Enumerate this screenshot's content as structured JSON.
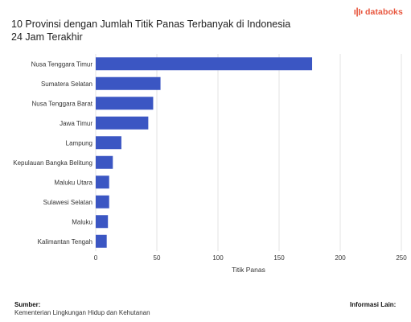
{
  "header": {
    "title_line1": "10 Provinsi dengan Jumlah Titik Panas Terbanyak di Indonesia",
    "title_line2": "24 Jam Terakhir"
  },
  "brand": {
    "logo_text": "databoks",
    "logo_icon": "pulse-bars-icon",
    "logo_color": "#e8573f"
  },
  "footer": {
    "source_heading": "Sumber:",
    "source_value": "Kementerian Lingkungan Hidup dan Kehutanan",
    "info_heading": "Informasi Lain:"
  },
  "chart_data": {
    "type": "bar",
    "orientation": "horizontal",
    "categories": [
      "Nusa Tenggara Timur",
      "Sumatera Selatan",
      "Nusa Tenggara Barat",
      "Jawa Timur",
      "Lampung",
      "Kepulauan Bangka Belitung",
      "Maluku Utara",
      "Sulawesi Selatan",
      "Maluku",
      "Kalimantan Tengah"
    ],
    "values": [
      177,
      53,
      47,
      43,
      21,
      14,
      11,
      11,
      10,
      9
    ],
    "xlabel": "Titik Panas",
    "ylabel": "",
    "xlim": [
      0,
      250
    ],
    "xticks": [
      0,
      50,
      100,
      150,
      200,
      250
    ],
    "grid": true,
    "bar_color": "#3b56c3",
    "grid_color": "#e3e3e3"
  }
}
